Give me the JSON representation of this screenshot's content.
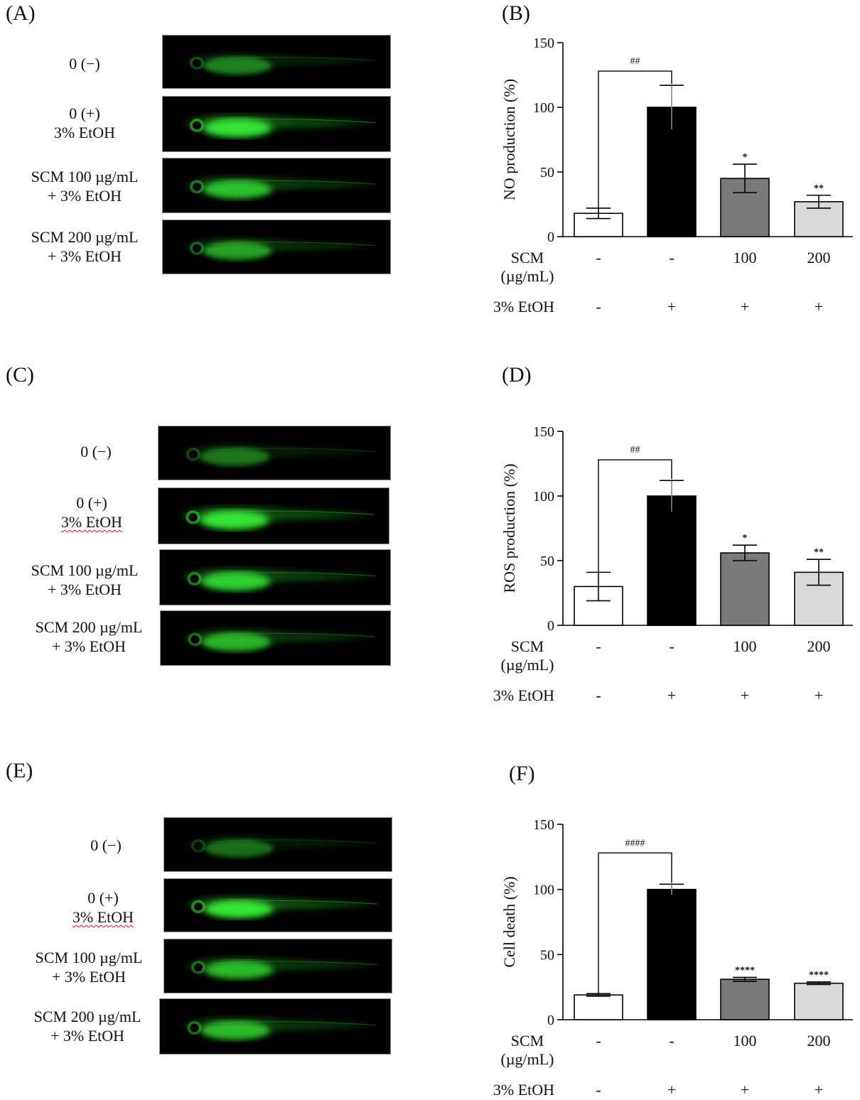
{
  "panels": [
    {
      "image_label": "(A)",
      "rows": [
        {
          "line1": "0 (−)",
          "line2": "",
          "glow": 0.35
        },
        {
          "line1": "0 (+)",
          "line2": "3% EtOH",
          "glow": 1.0
        },
        {
          "line1": "SCM 100 µg/mL",
          "line2": "+ 3% EtOH",
          "glow": 0.75
        },
        {
          "line1": "SCM 200 µg/mL",
          "line2": "+ 3% EtOH",
          "glow": 0.55
        }
      ],
      "chart_label": "(B)",
      "chart_data": {
        "type": "bar",
        "ylabel": "NO production (%)",
        "ylim": [
          0,
          150
        ],
        "yticks": [
          0,
          50,
          100,
          150
        ],
        "values": [
          18,
          100,
          45,
          27
        ],
        "errors": [
          4,
          17,
          11,
          5
        ],
        "significance": [
          "",
          "",
          "*",
          "**"
        ],
        "bracket_label": "##",
        "bar_colors": [
          "#ffffff",
          "#000000",
          "#7a7a7a",
          "#d9d9d9"
        ],
        "row1_label_a": "SCM",
        "row1_label_b": "(µg/mL)",
        "row1": [
          "-",
          "-",
          "100",
          "200"
        ],
        "row2_label": "3% EtOH",
        "row2": [
          "-",
          "+",
          "+",
          "+"
        ]
      }
    },
    {
      "image_label": "(C)",
      "rows": [
        {
          "line1": "0 (−)",
          "line2": "",
          "glow": 0.3
        },
        {
          "line1": "0 (+)",
          "line2": "3% EtOH",
          "glow": 1.0
        },
        {
          "line1": "SCM 100 µg/mL",
          "line2": "+ 3% EtOH",
          "glow": 0.85
        },
        {
          "line1": "SCM 200 µg/mL",
          "line2": "+ 3% EtOH",
          "glow": 0.65
        }
      ],
      "chart_label": "(D)",
      "chart_data": {
        "type": "bar",
        "ylabel": "ROS production (%)",
        "ylim": [
          0,
          150
        ],
        "yticks": [
          0,
          50,
          100,
          150
        ],
        "values": [
          30,
          100,
          56,
          41
        ],
        "errors": [
          11,
          12,
          6,
          10
        ],
        "significance": [
          "",
          "",
          "*",
          "**"
        ],
        "bracket_label": "##",
        "bar_colors": [
          "#ffffff",
          "#000000",
          "#7a7a7a",
          "#d9d9d9"
        ],
        "row1_label_a": "SCM",
        "row1_label_b": "(µg/mL)",
        "row1": [
          "-",
          "-",
          "100",
          "200"
        ],
        "row2_label": "3% EtOH",
        "row2": [
          "-",
          "+",
          "+",
          "+"
        ]
      }
    },
    {
      "image_label": "(E)",
      "rows": [
        {
          "line1": "0 (−)",
          "line2": "",
          "glow": 0.25
        },
        {
          "line1": "0 (+)",
          "line2": "3% EtOH",
          "glow": 1.0
        },
        {
          "line1": "SCM 100 µg/mL",
          "line2": "+ 3% EtOH",
          "glow": 0.7
        },
        {
          "line1": "SCM 200 µg/mL",
          "line2": "+ 3% EtOH",
          "glow": 0.7
        }
      ],
      "chart_label": "(F)",
      "chart_data": {
        "type": "bar",
        "ylabel": "Cell death (%)",
        "ylim": [
          0,
          150
        ],
        "yticks": [
          0,
          50,
          100,
          150
        ],
        "values": [
          19,
          100,
          31,
          28
        ],
        "errors": [
          1,
          4,
          1.5,
          1
        ],
        "significance": [
          "",
          "",
          "****",
          "****"
        ],
        "bracket_label": "####",
        "bar_colors": [
          "#ffffff",
          "#000000",
          "#7a7a7a",
          "#d9d9d9"
        ],
        "row1_label_a": "SCM",
        "row1_label_b": "(µg/mL)",
        "row1": [
          "-",
          "-",
          "100",
          "200"
        ],
        "row2_label": "3% EtOH",
        "row2": [
          "-",
          "+",
          "+",
          "+"
        ]
      }
    }
  ]
}
